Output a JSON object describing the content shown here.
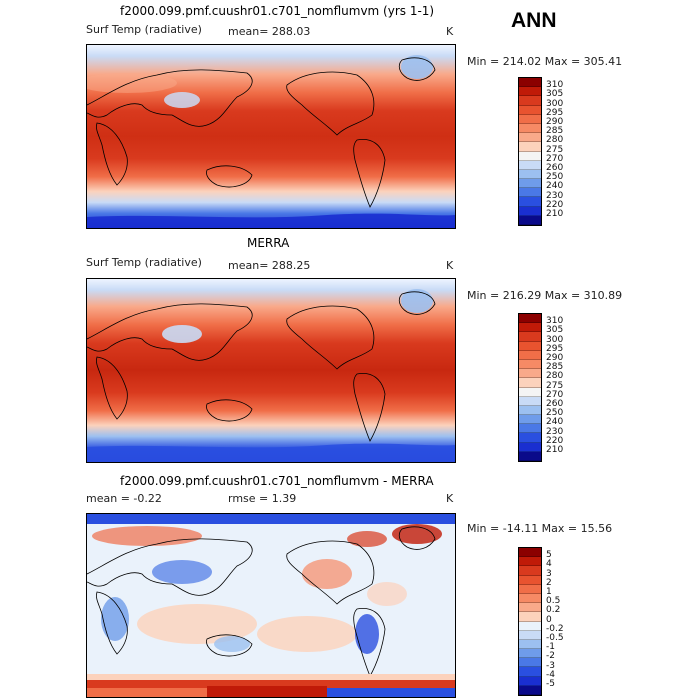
{
  "season": "ANN",
  "panels": [
    {
      "title": "f2000.099.pmf.cuushr01.c701_nomflumvm (yrs 1-1)",
      "var_label": "Surf Temp (radiative)",
      "stat_text": "mean= 288.03",
      "stat2_text": "",
      "units": "K",
      "range_text": "Min = 214.02  Max = 305.41",
      "colorbar_labels": [
        "310",
        "305",
        "300",
        "295",
        "290",
        "285",
        "280",
        "275",
        "270",
        "260",
        "250",
        "240",
        "230",
        "220",
        "210"
      ],
      "colorbar_colors": [
        "#8b0000",
        "#c01a08",
        "#d93a1e",
        "#e8532f",
        "#f06e48",
        "#f68a65",
        "#f9a98a",
        "#fcd2bc",
        "#f4f4f4",
        "#c9dbf6",
        "#9cc0f0",
        "#6f9cea",
        "#4a78e6",
        "#2a4fe0",
        "#1a2fd0",
        "#0a0a8a"
      ]
    },
    {
      "title": "MERRA",
      "var_label": "Surf Temp (radiative)",
      "stat_text": "mean= 288.25",
      "stat2_text": "",
      "units": "K",
      "range_text": "Min = 216.29  Max = 310.89",
      "colorbar_labels": [
        "310",
        "305",
        "300",
        "295",
        "290",
        "285",
        "280",
        "275",
        "270",
        "260",
        "250",
        "240",
        "230",
        "220",
        "210"
      ],
      "colorbar_colors": [
        "#8b0000",
        "#c01a08",
        "#d93a1e",
        "#e8532f",
        "#f06e48",
        "#f68a65",
        "#f9a98a",
        "#fcd2bc",
        "#f4f4f4",
        "#c9dbf6",
        "#9cc0f0",
        "#6f9cea",
        "#4a78e6",
        "#2a4fe0",
        "#1a2fd0",
        "#0a0a8a"
      ]
    },
    {
      "title": "f2000.099.pmf.cuushr01.c701_nomflumvm - MERRA",
      "var_label": "",
      "stat_text": "mean =   -0.22",
      "stat2_text": "rmse =    1.39",
      "units": "K",
      "range_text": "Min = -14.11  Max =   15.56",
      "colorbar_labels": [
        "5",
        "4",
        "3",
        "2",
        "1",
        "0.5",
        "0.2",
        "0",
        "-0.2",
        "-0.5",
        "-1",
        "-2",
        "-3",
        "-4",
        "-5"
      ],
      "colorbar_colors": [
        "#8b0000",
        "#c01a08",
        "#d93a1e",
        "#e8532f",
        "#f06e48",
        "#f68a65",
        "#f9a98a",
        "#fcd2bc",
        "#eaf2fb",
        "#c9dbf6",
        "#9cc0f0",
        "#6f9cea",
        "#4a78e6",
        "#2a4fe0",
        "#1a2fd0",
        "#0a0a8a"
      ]
    }
  ]
}
